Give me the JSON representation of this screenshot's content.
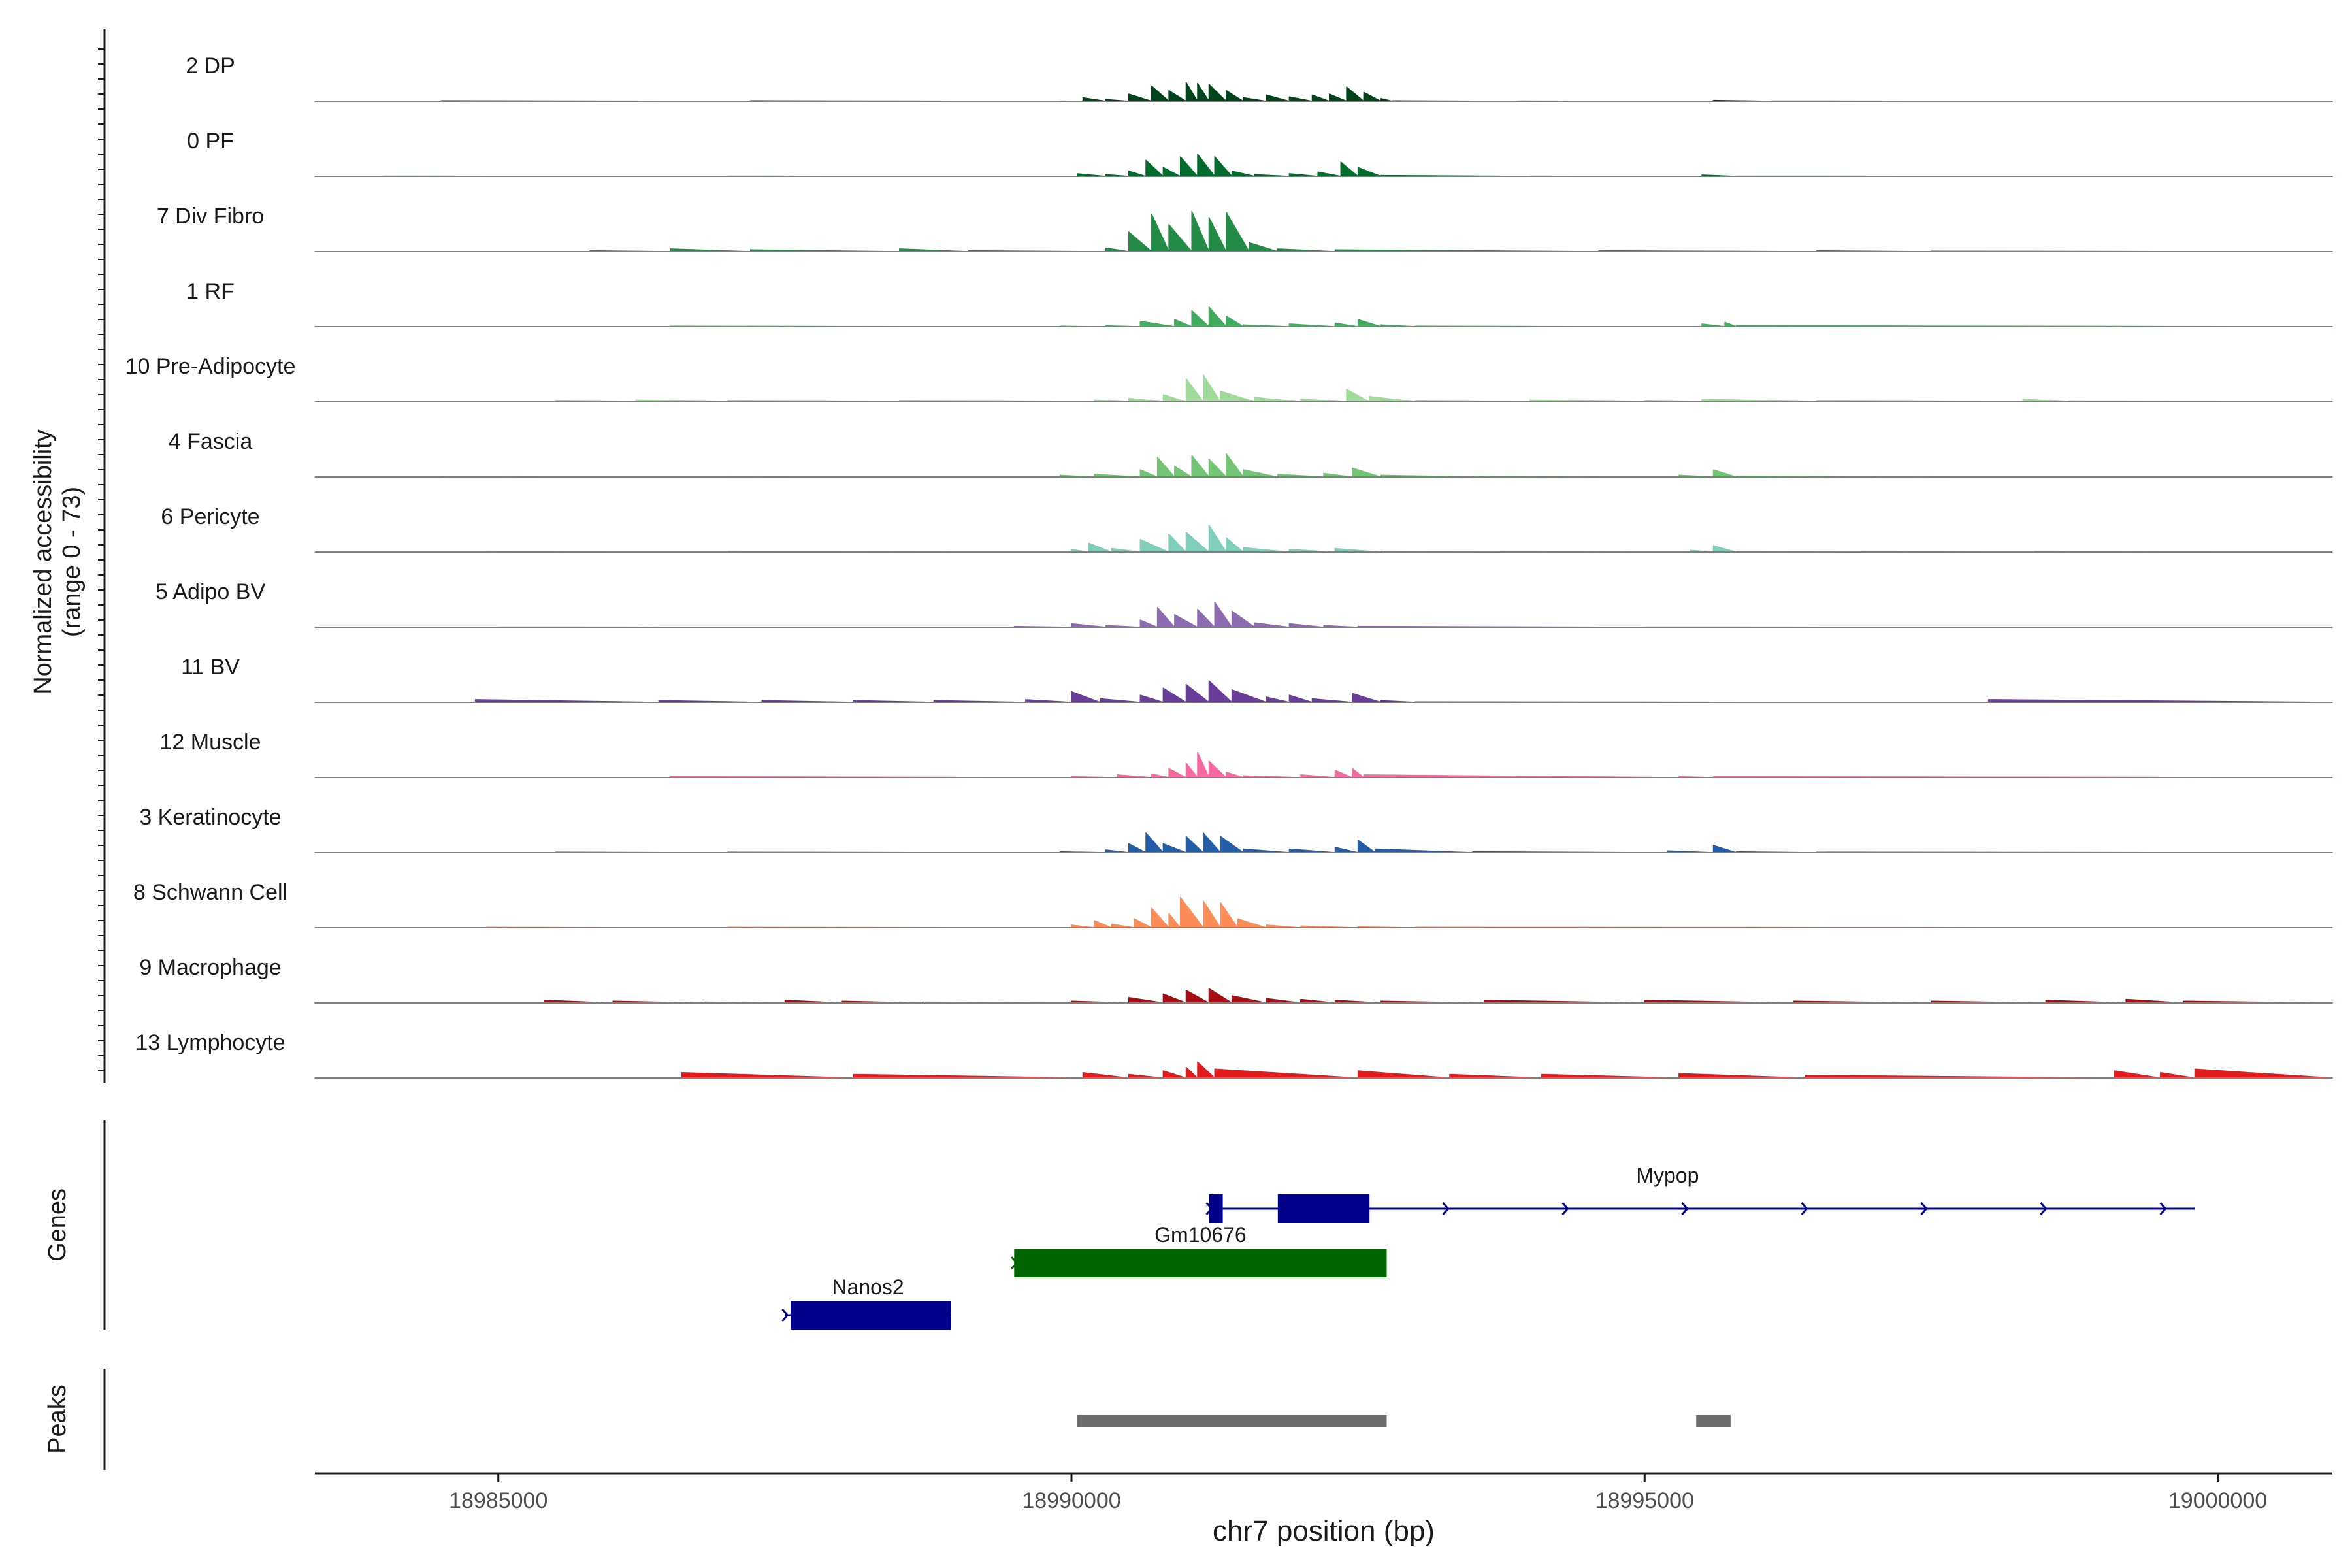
{
  "chart_data": {
    "type": "area",
    "title": "",
    "y_axis_label_line1": "Normalized accessibility",
    "y_axis_label_line2": "(range 0 - 73)",
    "xlabel": "chr7 position (bp)",
    "xlim": [
      18983400,
      19001000
    ],
    "x_ticks": [
      18985000,
      18990000,
      18995000,
      19000000
    ],
    "x_tick_labels": [
      "18985000",
      "18990000",
      "18995000",
      "19000000"
    ],
    "track_max": 73,
    "tracks": [
      {
        "name": "2 DP",
        "color": "#00441b",
        "values": [
          [
            18984500,
            0.5
          ],
          [
            18987200,
            0.5
          ],
          [
            18989900,
            0.3
          ],
          [
            18990100,
            4
          ],
          [
            18990300,
            2
          ],
          [
            18990500,
            8
          ],
          [
            18990700,
            17
          ],
          [
            18990850,
            12
          ],
          [
            18991000,
            21
          ],
          [
            18991100,
            20
          ],
          [
            18991200,
            19
          ],
          [
            18991350,
            12
          ],
          [
            18991500,
            4
          ],
          [
            18991700,
            7
          ],
          [
            18991900,
            5
          ],
          [
            18992100,
            7
          ],
          [
            18992250,
            8
          ],
          [
            18992400,
            16
          ],
          [
            18992550,
            10
          ],
          [
            18992700,
            3
          ],
          [
            18992800,
            0.5
          ],
          [
            18993900,
            0.3
          ],
          [
            18995600,
            1
          ],
          [
            18996100,
            0.3
          ]
        ]
      },
      {
        "name": "0 PF",
        "color": "#006d2c",
        "values": [
          [
            18984000,
            0.3
          ],
          [
            18987000,
            0.3
          ],
          [
            18990050,
            3
          ],
          [
            18990300,
            2
          ],
          [
            18990500,
            6
          ],
          [
            18990650,
            18
          ],
          [
            18990800,
            10
          ],
          [
            18990950,
            22
          ],
          [
            18991100,
            25
          ],
          [
            18991250,
            22
          ],
          [
            18991400,
            6
          ],
          [
            18991600,
            2
          ],
          [
            18991900,
            3
          ],
          [
            18992150,
            5
          ],
          [
            18992350,
            16
          ],
          [
            18992500,
            10
          ],
          [
            18992700,
            1
          ],
          [
            18994000,
            0.3
          ],
          [
            18995500,
            1.5
          ],
          [
            18995800,
            0.3
          ]
        ]
      },
      {
        "name": "7 Div Fibro",
        "color": "#238b45",
        "values": [
          [
            18985800,
            1
          ],
          [
            18986500,
            3
          ],
          [
            18987200,
            2
          ],
          [
            18988500,
            3
          ],
          [
            18989100,
            1
          ],
          [
            18990300,
            4
          ],
          [
            18990500,
            22
          ],
          [
            18990700,
            42
          ],
          [
            18990850,
            30
          ],
          [
            18991050,
            45
          ],
          [
            18991200,
            38
          ],
          [
            18991350,
            44
          ],
          [
            18991550,
            10
          ],
          [
            18991800,
            3
          ],
          [
            18992300,
            2
          ],
          [
            18994600,
            1
          ],
          [
            18996500,
            1
          ],
          [
            18997500,
            0.5
          ]
        ]
      },
      {
        "name": "1 RF",
        "color": "#41ab5d",
        "values": [
          [
            18986500,
            0.5
          ],
          [
            18989900,
            0.5
          ],
          [
            18990300,
            1
          ],
          [
            18990600,
            6
          ],
          [
            18990900,
            8
          ],
          [
            18991050,
            18
          ],
          [
            18991200,
            22
          ],
          [
            18991350,
            12
          ],
          [
            18991500,
            2
          ],
          [
            18991900,
            3
          ],
          [
            18992300,
            4
          ],
          [
            18992500,
            8
          ],
          [
            18992700,
            2
          ],
          [
            18993000,
            0.5
          ],
          [
            18995500,
            3
          ],
          [
            18995700,
            5
          ],
          [
            18995800,
            1
          ]
        ]
      },
      {
        "name": "10 Pre-Adipocyte",
        "color": "#a1d99b",
        "values": [
          [
            18985500,
            1
          ],
          [
            18986200,
            2
          ],
          [
            18987000,
            1
          ],
          [
            18988500,
            1
          ],
          [
            18990200,
            2
          ],
          [
            18990500,
            4
          ],
          [
            18990800,
            8
          ],
          [
            18991000,
            26
          ],
          [
            18991150,
            30
          ],
          [
            18991300,
            12
          ],
          [
            18991600,
            5
          ],
          [
            18992000,
            3
          ],
          [
            18992400,
            14
          ],
          [
            18992600,
            6
          ],
          [
            18993000,
            1
          ],
          [
            18994000,
            2
          ],
          [
            18995000,
            1
          ],
          [
            18995500,
            3
          ],
          [
            18996500,
            1
          ],
          [
            18998300,
            3
          ],
          [
            18998700,
            0.5
          ]
        ]
      },
      {
        "name": "4 Fascia",
        "color": "#74c476",
        "values": [
          [
            18984500,
            0.3
          ],
          [
            18987000,
            0.3
          ],
          [
            18989900,
            2
          ],
          [
            18990200,
            3
          ],
          [
            18990600,
            8
          ],
          [
            18990750,
            22
          ],
          [
            18990900,
            12
          ],
          [
            18991050,
            24
          ],
          [
            18991200,
            20
          ],
          [
            18991350,
            26
          ],
          [
            18991500,
            8
          ],
          [
            18991800,
            3
          ],
          [
            18992200,
            4
          ],
          [
            18992450,
            10
          ],
          [
            18992700,
            2
          ],
          [
            18993500,
            0.5
          ],
          [
            18995300,
            2
          ],
          [
            18995600,
            8
          ],
          [
            18995800,
            1
          ],
          [
            18997000,
            0.3
          ]
        ]
      },
      {
        "name": "6 Pericyte",
        "color": "#7fcdbb",
        "values": [
          [
            18984900,
            0.5
          ],
          [
            18987000,
            0.5
          ],
          [
            18990000,
            3
          ],
          [
            18990150,
            10
          ],
          [
            18990350,
            4
          ],
          [
            18990600,
            14
          ],
          [
            18990850,
            20
          ],
          [
            18991000,
            22
          ],
          [
            18991200,
            30
          ],
          [
            18991350,
            16
          ],
          [
            18991500,
            5
          ],
          [
            18991900,
            3
          ],
          [
            18992300,
            4
          ],
          [
            18992700,
            1
          ],
          [
            18995400,
            2
          ],
          [
            18995600,
            7
          ],
          [
            18995800,
            1
          ],
          [
            18998400,
            0.5
          ]
        ]
      },
      {
        "name": "5 Adipo BV",
        "color": "#8c6bb1",
        "values": [
          [
            18985000,
            0.3
          ],
          [
            18989500,
            1
          ],
          [
            18990000,
            4
          ],
          [
            18990300,
            2
          ],
          [
            18990600,
            8
          ],
          [
            18990750,
            22
          ],
          [
            18990900,
            14
          ],
          [
            18991100,
            20
          ],
          [
            18991250,
            28
          ],
          [
            18991400,
            18
          ],
          [
            18991600,
            5
          ],
          [
            18991900,
            4
          ],
          [
            18992200,
            2
          ],
          [
            18992500,
            1
          ],
          [
            18995000,
            0.3
          ]
        ]
      },
      {
        "name": "11 BV",
        "color": "#6a3d9a",
        "values": [
          [
            18984800,
            3
          ],
          [
            18986400,
            2
          ],
          [
            18987300,
            2
          ],
          [
            18988100,
            2
          ],
          [
            18988800,
            2
          ],
          [
            18989600,
            3
          ],
          [
            18990000,
            12
          ],
          [
            18990250,
            4
          ],
          [
            18990600,
            8
          ],
          [
            18990800,
            16
          ],
          [
            18991000,
            20
          ],
          [
            18991200,
            24
          ],
          [
            18991400,
            14
          ],
          [
            18991700,
            6
          ],
          [
            18991900,
            8
          ],
          [
            18992100,
            4
          ],
          [
            18992450,
            10
          ],
          [
            18992700,
            2
          ],
          [
            18993000,
            0.5
          ],
          [
            18998000,
            3
          ]
        ]
      },
      {
        "name": "12 Muscle",
        "color": "#f768a1",
        "values": [
          [
            18986500,
            1
          ],
          [
            18990000,
            1
          ],
          [
            18990400,
            3
          ],
          [
            18990700,
            4
          ],
          [
            18990850,
            10
          ],
          [
            18991000,
            16
          ],
          [
            18991100,
            28
          ],
          [
            18991200,
            18
          ],
          [
            18991350,
            6
          ],
          [
            18991500,
            2
          ],
          [
            18992000,
            3
          ],
          [
            18992300,
            8
          ],
          [
            18992450,
            10
          ],
          [
            18992550,
            3
          ],
          [
            18995300,
            1
          ],
          [
            18995600,
            1
          ]
        ]
      },
      {
        "name": "3 Keratinocyte",
        "color": "#225ea8",
        "values": [
          [
            18985500,
            0.5
          ],
          [
            18987000,
            0.5
          ],
          [
            18989900,
            1
          ],
          [
            18990300,
            3
          ],
          [
            18990500,
            10
          ],
          [
            18990650,
            22
          ],
          [
            18990800,
            10
          ],
          [
            18991000,
            18
          ],
          [
            18991150,
            22
          ],
          [
            18991300,
            18
          ],
          [
            18991500,
            4
          ],
          [
            18991900,
            4
          ],
          [
            18992300,
            6
          ],
          [
            18992500,
            14
          ],
          [
            18992650,
            4
          ],
          [
            18993500,
            1
          ],
          [
            18995200,
            2
          ],
          [
            18995600,
            8
          ],
          [
            18995800,
            1
          ],
          [
            18996500,
            0.5
          ]
        ]
      },
      {
        "name": "8 Schwann Cell",
        "color": "#fc8d59",
        "values": [
          [
            18984900,
            0.5
          ],
          [
            18987000,
            0.5
          ],
          [
            18990000,
            3
          ],
          [
            18990200,
            8
          ],
          [
            18990350,
            4
          ],
          [
            18990550,
            10
          ],
          [
            18990700,
            22
          ],
          [
            18990850,
            16
          ],
          [
            18990950,
            34
          ],
          [
            18991150,
            30
          ],
          [
            18991300,
            28
          ],
          [
            18991450,
            10
          ],
          [
            18991700,
            3
          ],
          [
            18992000,
            2
          ],
          [
            18992500,
            1
          ],
          [
            18993000,
            0.5
          ]
        ]
      },
      {
        "name": "9 Macrophage",
        "color": "#a50f15",
        "values": [
          [
            18985400,
            3
          ],
          [
            18986000,
            2
          ],
          [
            18986800,
            1
          ],
          [
            18987500,
            3
          ],
          [
            18988000,
            2
          ],
          [
            18988700,
            1
          ],
          [
            18990000,
            2
          ],
          [
            18990500,
            6
          ],
          [
            18990800,
            10
          ],
          [
            18991000,
            14
          ],
          [
            18991200,
            16
          ],
          [
            18991400,
            8
          ],
          [
            18991700,
            5
          ],
          [
            18992000,
            4
          ],
          [
            18992300,
            3
          ],
          [
            18992700,
            2
          ],
          [
            18993600,
            3
          ],
          [
            18995000,
            3
          ],
          [
            18996300,
            2
          ],
          [
            18997500,
            2
          ],
          [
            18998500,
            3
          ],
          [
            18999200,
            4
          ],
          [
            18999700,
            2
          ]
        ]
      },
      {
        "name": "13 Lymphocyte",
        "color": "#e31a1c",
        "values": [
          [
            18986600,
            6
          ],
          [
            18988100,
            4
          ],
          [
            18990100,
            6
          ],
          [
            18990500,
            4
          ],
          [
            18990800,
            8
          ],
          [
            18991000,
            12
          ],
          [
            18991100,
            18
          ],
          [
            18991250,
            10
          ],
          [
            18992500,
            8
          ],
          [
            18993300,
            4
          ],
          [
            18994100,
            4
          ],
          [
            18995300,
            5
          ],
          [
            18996400,
            3
          ],
          [
            18999100,
            8
          ],
          [
            18999500,
            6
          ],
          [
            18999800,
            10
          ]
        ]
      }
    ],
    "genes_track_label": "Genes",
    "genes": [
      {
        "name": "Mypop",
        "color": "#00008b",
        "start": 18991200,
        "end": 18999800,
        "strand": "+",
        "exons": [
          [
            18991200,
            18991320
          ],
          [
            18991800,
            18992600
          ]
        ],
        "row": 0
      },
      {
        "name": "Gm10676",
        "color": "#006400",
        "start": 18989500,
        "end": 18992750,
        "strand": "+",
        "exons": [
          [
            18989500,
            18992750
          ]
        ],
        "row": 1
      },
      {
        "name": "Nanos2",
        "color": "#00008b",
        "start": 18987500,
        "end": 18988950,
        "strand": "+",
        "exons": [
          [
            18987550,
            18988950
          ]
        ],
        "row": 2
      }
    ],
    "peaks_track_label": "Peaks",
    "peaks": [
      [
        18990050,
        18992750
      ],
      [
        18995450,
        18995750
      ]
    ],
    "peak_color": "#6e6e6e",
    "grid": false
  }
}
